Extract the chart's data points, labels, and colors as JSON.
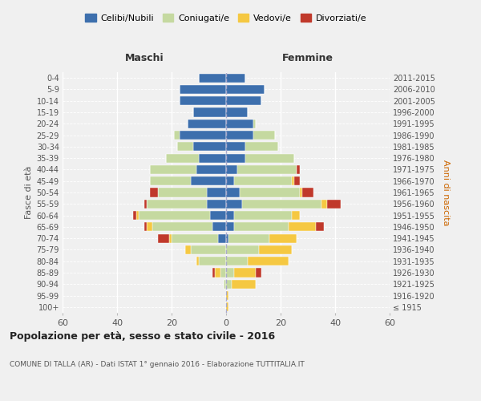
{
  "age_groups": [
    "100+",
    "95-99",
    "90-94",
    "85-89",
    "80-84",
    "75-79",
    "70-74",
    "65-69",
    "60-64",
    "55-59",
    "50-54",
    "45-49",
    "40-44",
    "35-39",
    "30-34",
    "25-29",
    "20-24",
    "15-19",
    "10-14",
    "5-9",
    "0-4"
  ],
  "birth_years": [
    "≤ 1915",
    "1916-1920",
    "1921-1925",
    "1926-1930",
    "1931-1935",
    "1936-1940",
    "1941-1945",
    "1946-1950",
    "1951-1955",
    "1956-1960",
    "1961-1965",
    "1966-1970",
    "1971-1975",
    "1976-1980",
    "1981-1985",
    "1986-1990",
    "1991-1995",
    "1996-2000",
    "2001-2005",
    "2006-2010",
    "2011-2015"
  ],
  "male": {
    "celibi": [
      0,
      0,
      0,
      0,
      0,
      0,
      3,
      5,
      6,
      7,
      7,
      13,
      11,
      10,
      12,
      17,
      14,
      12,
      17,
      17,
      10
    ],
    "coniugati": [
      0,
      0,
      1,
      2,
      10,
      13,
      17,
      22,
      26,
      22,
      18,
      15,
      17,
      12,
      6,
      2,
      0,
      0,
      0,
      0,
      0
    ],
    "vedovi": [
      0,
      0,
      0,
      2,
      1,
      2,
      1,
      2,
      1,
      0,
      0,
      0,
      0,
      0,
      0,
      0,
      0,
      0,
      0,
      0,
      0
    ],
    "divorziati": [
      0,
      0,
      0,
      1,
      0,
      0,
      4,
      1,
      1,
      1,
      3,
      0,
      0,
      0,
      0,
      0,
      0,
      0,
      0,
      0,
      0
    ]
  },
  "female": {
    "nubili": [
      0,
      0,
      0,
      0,
      0,
      0,
      1,
      3,
      3,
      6,
      5,
      3,
      4,
      7,
      7,
      10,
      10,
      8,
      13,
      14,
      7
    ],
    "coniugate": [
      0,
      0,
      2,
      3,
      8,
      12,
      15,
      20,
      21,
      29,
      22,
      21,
      22,
      18,
      12,
      8,
      1,
      0,
      0,
      0,
      0
    ],
    "vedove": [
      1,
      1,
      9,
      8,
      15,
      12,
      10,
      10,
      3,
      2,
      1,
      1,
      0,
      0,
      0,
      0,
      0,
      0,
      0,
      0,
      0
    ],
    "divorziate": [
      0,
      0,
      0,
      2,
      0,
      0,
      0,
      3,
      0,
      5,
      4,
      2,
      1,
      0,
      0,
      0,
      0,
      0,
      0,
      0,
      0
    ]
  },
  "colors": {
    "celibi": "#3d6fad",
    "coniugati": "#c5d9a0",
    "vedovi": "#f5c842",
    "divorziati": "#c0392b"
  },
  "xlim": 60,
  "title": "Popolazione per età, sesso e stato civile - 2016",
  "subtitle": "COMUNE DI TALLA (AR) - Dati ISTAT 1° gennaio 2016 - Elaborazione TUTTITALIA.IT",
  "ylabel_left": "Fasce di età",
  "ylabel_right": "Anni di nascita",
  "xlabel_maschi": "Maschi",
  "xlabel_femmine": "Femmine",
  "bg_color": "#f0f0f0",
  "grid_color": "#ffffff"
}
